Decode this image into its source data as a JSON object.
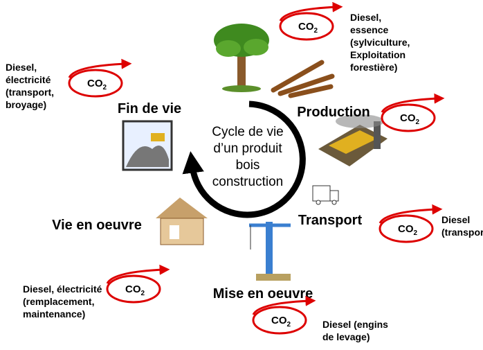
{
  "center": {
    "lines": [
      "Cycle de vie",
      "d’un produit",
      "bois",
      "construction"
    ]
  },
  "stages": [
    "Fin de vie",
    "Production",
    "Transport",
    "Vie en oeuvre",
    "Mise en oeuvre"
  ],
  "badges": [
    {
      "text": "CO",
      "subscript": "2"
    },
    {
      "text": "CO",
      "subscript": "2"
    },
    {
      "text": "CO",
      "subscript": "2"
    },
    {
      "text": "CO",
      "subscript": "2"
    },
    {
      "text": "CO",
      "subscript": "2"
    },
    {
      "text": "CO",
      "subscript": "2"
    }
  ],
  "notes": [
    {
      "lines": [
        "Diesel,",
        "essence",
        "(sylviculture,",
        "Exploitation",
        "forestière)"
      ]
    },
    {
      "lines": [
        "Diesel,",
        "électricité",
        "(transport,",
        "broyage)"
      ]
    },
    {
      "lines": [
        "Diesel",
        "(transport"
      ]
    },
    {
      "lines": [
        "Diesel, électricité",
        "(remplacement,",
        "maintenance)"
      ]
    },
    {
      "lines": [
        "Diesel (engins",
        "de levage)"
      ]
    }
  ]
}
